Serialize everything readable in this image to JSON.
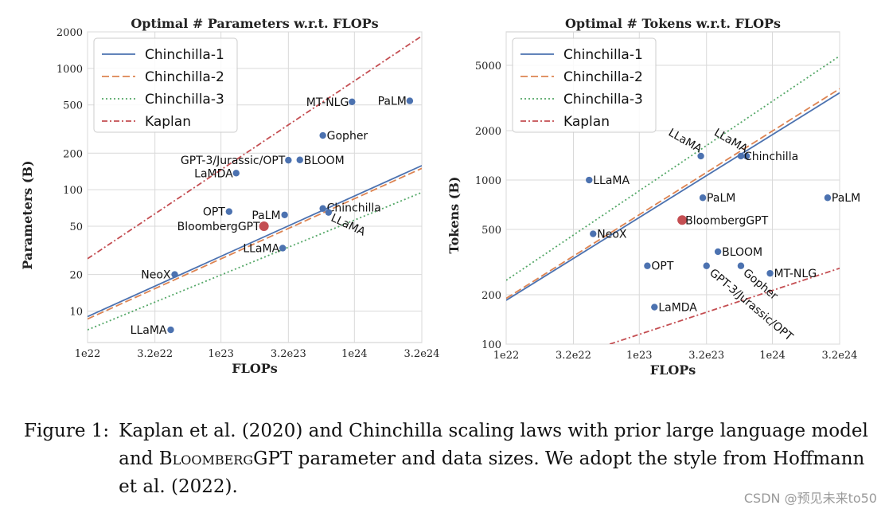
{
  "chart_data": [
    {
      "type": "scatter",
      "title": "Optimal # Parameters w.r.t. FLOPs",
      "xlabel": "FLOPs",
      "ylabel": "Parameters (B)",
      "xscale": "log",
      "yscale": "log",
      "xlim": [
        1e+22,
        3.2e+24
      ],
      "ylim": [
        5.5,
        2000
      ],
      "xticks": [
        "1e22",
        "3.2e22",
        "1e23",
        "3.2e23",
        "1e24",
        "3.2e24"
      ],
      "yticks": [
        "10",
        "20",
        "50",
        "100",
        "200",
        "500",
        "1000",
        "2000"
      ],
      "legend": [
        "Chinchilla-1",
        "Chinchilla-2",
        "Chinchilla-3",
        "Kaplan"
      ],
      "legend_position": "top-left",
      "grid": true,
      "series": [
        {
          "name": "Chinchilla-1",
          "style": "solid",
          "color": "#4c72b0",
          "points": [
            [
              1e+22,
              9
            ],
            [
              3.2e+24,
              158
            ]
          ]
        },
        {
          "name": "Chinchilla-2",
          "style": "dashed",
          "color": "#dd8452",
          "points": [
            [
              1e+22,
              8.6
            ],
            [
              3.2e+24,
              150
            ]
          ]
        },
        {
          "name": "Chinchilla-3",
          "style": "dotted",
          "color": "#55a868",
          "points": [
            [
              1e+22,
              7
            ],
            [
              3.2e+24,
              95
            ]
          ]
        },
        {
          "name": "Kaplan",
          "style": "dashdot",
          "color": "#c44e52",
          "points": [
            [
              1e+22,
              27
            ],
            [
              3.2e+24,
              1850
            ]
          ]
        }
      ],
      "models": [
        {
          "name": "MT-NLG",
          "flops": 9.6e+23,
          "value": 530,
          "label_side": "left"
        },
        {
          "name": "PaLM",
          "flops": 2.6e+24,
          "value": 540,
          "label_side": "left"
        },
        {
          "name": "Gopher",
          "flops": 5.8e+23,
          "value": 280,
          "label_side": "right"
        },
        {
          "name": "GPT-3/Jurassic/OPT",
          "flops": 3.2e+23,
          "value": 175,
          "label_side": "left"
        },
        {
          "name": "BLOOM",
          "flops": 3.9e+23,
          "value": 176,
          "label_side": "right"
        },
        {
          "name": "LaMDA",
          "flops": 1.3e+23,
          "value": 137,
          "label_side": "left"
        },
        {
          "name": "OPT",
          "flops": 1.15e+23,
          "value": 66,
          "label_side": "left"
        },
        {
          "name": "PaLM",
          "flops": 3e+23,
          "value": 62,
          "label_side": "left"
        },
        {
          "name": "Chinchilla",
          "flops": 5.8e+23,
          "value": 70,
          "label_side": "right"
        },
        {
          "name": "LLaMA",
          "flops": 6.4e+23,
          "value": 65,
          "label_side": "rotated"
        },
        {
          "name": "BloombergGPT",
          "flops": 2.1e+23,
          "value": 50,
          "label_side": "left",
          "highlight": true
        },
        {
          "name": "LLaMA",
          "flops": 2.9e+23,
          "value": 33,
          "label_side": "left"
        },
        {
          "name": "NeoX",
          "flops": 4.5e+22,
          "value": 20,
          "label_side": "left"
        },
        {
          "name": "LLaMA",
          "flops": 4.2e+22,
          "value": 7,
          "label_side": "left"
        }
      ]
    },
    {
      "type": "scatter",
      "title": "Optimal # Tokens w.r.t. FLOPs",
      "xlabel": "FLOPs",
      "ylabel": "Tokens (B)",
      "xscale": "log",
      "yscale": "log",
      "xlim": [
        1e+22,
        3.2e+24
      ],
      "ylim": [
        100,
        8000
      ],
      "xticks": [
        "1e22",
        "3.2e22",
        "1e23",
        "3.2e23",
        "1e24",
        "3.2e24"
      ],
      "yticks": [
        "100",
        "200",
        "500",
        "1000",
        "2000",
        "5000"
      ],
      "legend": [
        "Chinchilla-1",
        "Chinchilla-2",
        "Chinchilla-3",
        "Kaplan"
      ],
      "legend_position": "top-left",
      "grid": true,
      "series": [
        {
          "name": "Chinchilla-1",
          "style": "solid",
          "color": "#4c72b0",
          "points": [
            [
              1e+22,
              185
            ],
            [
              3.2e+24,
              3400
            ]
          ]
        },
        {
          "name": "Chinchilla-2",
          "style": "dashed",
          "color": "#dd8452",
          "points": [
            [
              1e+22,
              190
            ],
            [
              3.2e+24,
              3600
            ]
          ]
        },
        {
          "name": "Chinchilla-3",
          "style": "dotted",
          "color": "#55a868",
          "points": [
            [
              1e+22,
              245
            ],
            [
              3.2e+24,
              5700
            ]
          ]
        },
        {
          "name": "Kaplan",
          "style": "dashdot",
          "color": "#c44e52",
          "points": [
            [
              6e+22,
              100
            ],
            [
              3.2e+24,
              290
            ]
          ]
        }
      ],
      "models": [
        {
          "name": "LLaMA",
          "flops": 2.9e+23,
          "value": 1400,
          "label_side": "rotated-left"
        },
        {
          "name": "LLaMA",
          "flops": 6.4e+23,
          "value": 1400,
          "label_side": "rotated-left"
        },
        {
          "name": "Chinchilla",
          "flops": 5.8e+23,
          "value": 1400,
          "label_side": "right"
        },
        {
          "name": "LLaMA",
          "flops": 4.2e+22,
          "value": 1000,
          "label_side": "right"
        },
        {
          "name": "PaLM",
          "flops": 3e+23,
          "value": 780,
          "label_side": "right"
        },
        {
          "name": "PaLM",
          "flops": 2.6e+24,
          "value": 780,
          "label_side": "right"
        },
        {
          "name": "BloombergGPT",
          "flops": 2.1e+23,
          "value": 570,
          "label_side": "right",
          "highlight": true
        },
        {
          "name": "NeoX",
          "flops": 4.5e+22,
          "value": 470,
          "label_side": "right"
        },
        {
          "name": "BLOOM",
          "flops": 3.9e+23,
          "value": 366,
          "label_side": "right"
        },
        {
          "name": "OPT",
          "flops": 1.15e+23,
          "value": 300,
          "label_side": "right"
        },
        {
          "name": "GPT-3/Jurassic/OPT",
          "flops": 3.2e+23,
          "value": 300,
          "label_side": "rotated-down"
        },
        {
          "name": "Gopher",
          "flops": 5.8e+23,
          "value": 300,
          "label_side": "rotated-down"
        },
        {
          "name": "MT-NLG",
          "flops": 9.6e+23,
          "value": 270,
          "label_side": "right"
        },
        {
          "name": "LaMDA",
          "flops": 1.3e+23,
          "value": 168,
          "label_side": "right"
        }
      ]
    }
  ],
  "caption": {
    "label": "Figure 1:",
    "parts": [
      {
        "text": "Kaplan et al. (2020) and Chinchilla scaling laws with prior large language model and ",
        "style": "normal"
      },
      {
        "text": "Bloomberg",
        "style": "smallcaps"
      },
      {
        "text": "GPT parameter and data sizes. We adopt the style from Hoffmann et al. (2022).",
        "style": "normal"
      }
    ]
  },
  "watermark": "CSDN @预见未来to50",
  "colors": {
    "model_point": "#4c72b0",
    "highlight_point": "#c44e52",
    "grid": "#d9d9d9"
  }
}
